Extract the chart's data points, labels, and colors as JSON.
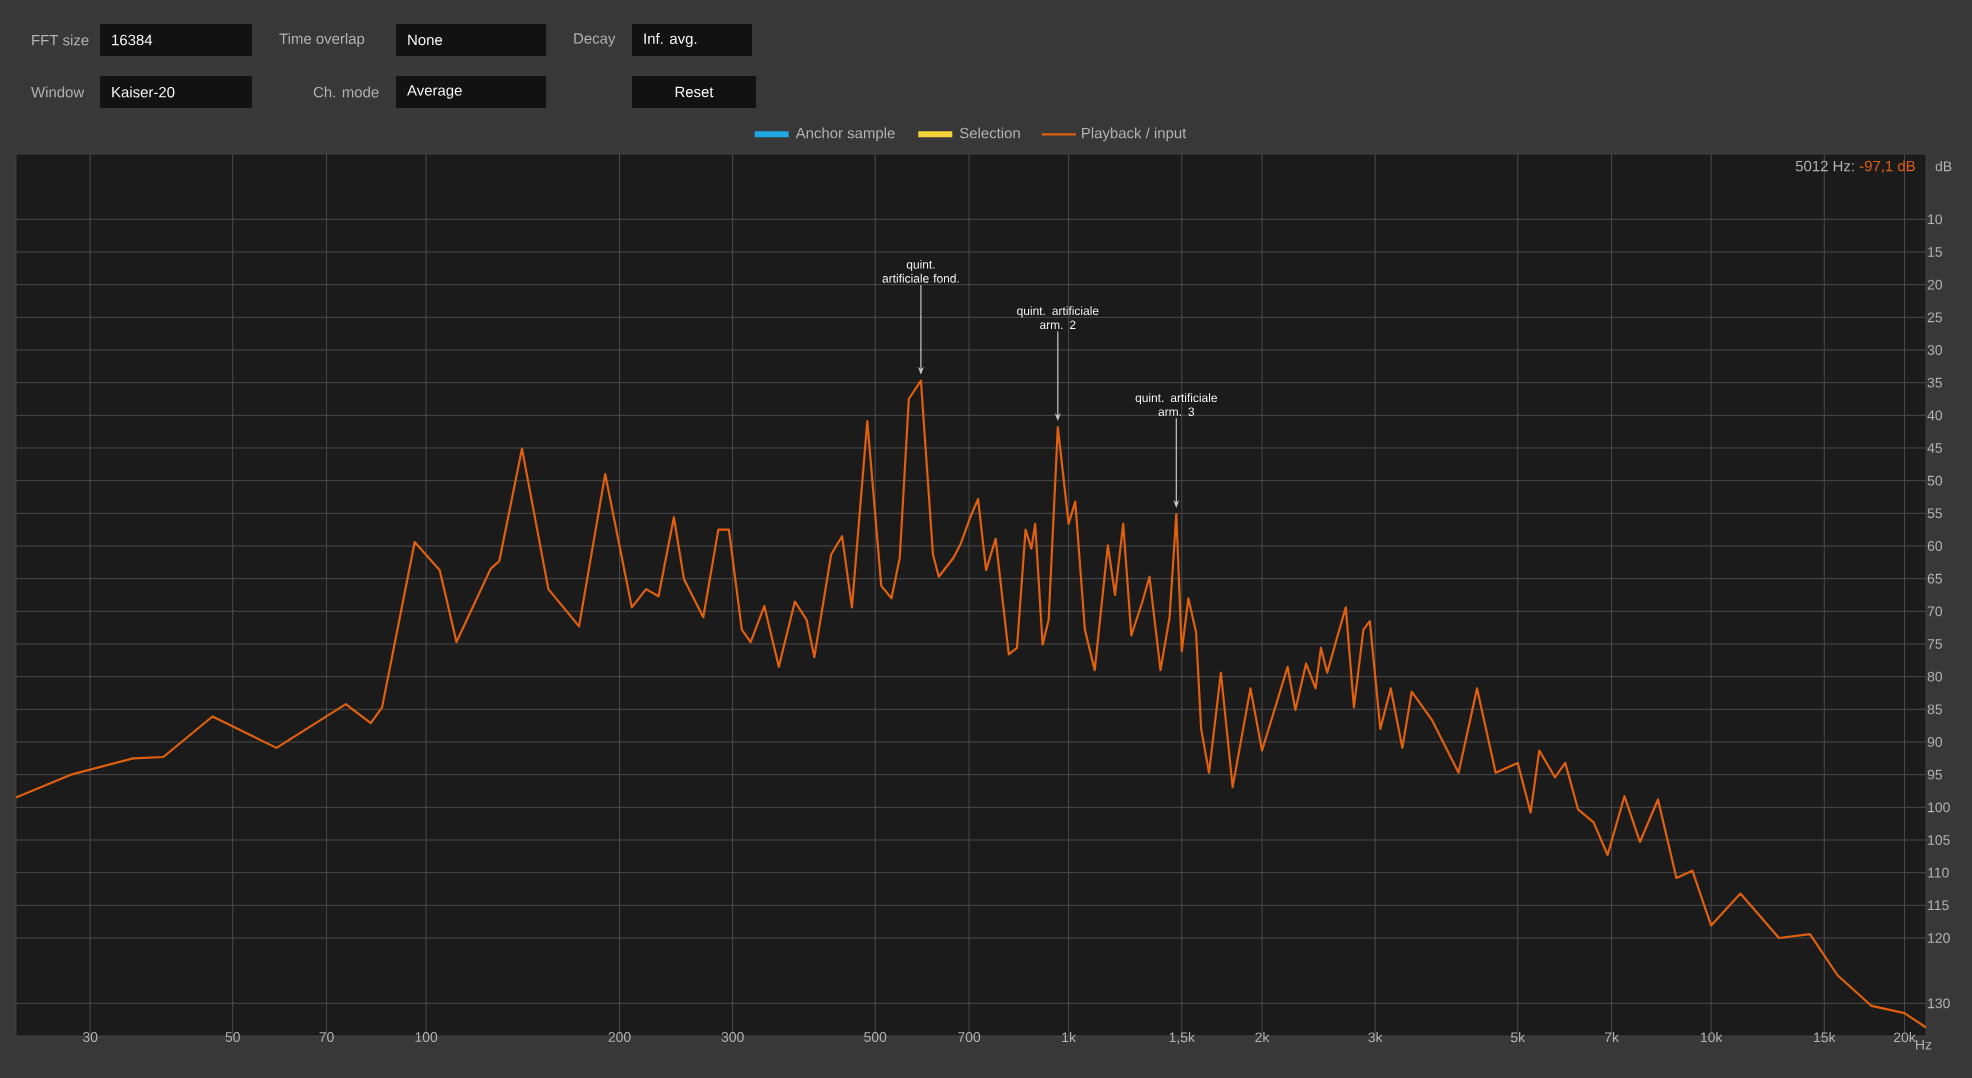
{
  "chart_data": {
    "type": "line",
    "ylabel": "dB",
    "log": "x",
    "grid": true,
    "legend": "top",
    "xlim": [
      23,
      21600
    ],
    "ylim": [
      -135,
      0
    ],
    "xticks": [
      30,
      50,
      70,
      100,
      200,
      300,
      500,
      700,
      {
        "value": 1000,
        "label": "1k"
      },
      {
        "value": 1500,
        "label": "1,5k"
      },
      {
        "value": 2000,
        "label": "2k"
      },
      {
        "value": 3000,
        "label": "3k"
      },
      {
        "value": 5000,
        "label": "5k"
      },
      {
        "value": 7000,
        "label": "7k"
      },
      {
        "value": 10000,
        "label": "10k"
      },
      {
        "value": 15000,
        "label": "15k"
      },
      {
        "value": 20000,
        "label": "20k"
      }
    ],
    "xlabel": "Hz",
    "yticks": [
      {
        "value": -10,
        "label": "10"
      },
      {
        "value": -15,
        "label": "15"
      },
      {
        "value": -20,
        "label": "20"
      },
      {
        "value": -25,
        "label": "25"
      },
      {
        "value": -30,
        "label": "30"
      },
      {
        "value": -35,
        "label": "35"
      },
      {
        "value": -40,
        "label": "40"
      },
      {
        "value": -45,
        "label": "45"
      },
      {
        "value": -50,
        "label": "50"
      },
      {
        "value": -55,
        "label": "55"
      },
      {
        "value": -60,
        "label": "60"
      },
      {
        "value": -65,
        "label": "65"
      },
      {
        "value": -70,
        "label": "70"
      },
      {
        "value": -75,
        "label": "75"
      },
      {
        "value": -80,
        "label": "80"
      },
      {
        "value": -85,
        "label": "85"
      },
      {
        "value": -90,
        "label": "90"
      },
      {
        "value": -95,
        "label": "95"
      },
      {
        "value": -100,
        "label": "100"
      },
      {
        "value": -105,
        "label": "105"
      },
      {
        "value": -110,
        "label": "110"
      },
      {
        "value": -115,
        "label": "115"
      },
      {
        "value": -120,
        "label": "120"
      },
      {
        "value": -130,
        "label": "130"
      }
    ],
    "series": [
      {
        "name": "Anchor sample",
        "color": "#1ea7e1"
      },
      {
        "name": "Selection",
        "color": "#f3d23a"
      },
      {
        "name": "Playback / input",
        "color": "#e0600f",
        "x": [
          23,
          28,
          35,
          39,
          46.5,
          58.5,
          75,
          82,
          85.4,
          96,
          105,
          111.5,
          126,
          130,
          141,
          155,
          173,
          190,
          209,
          220,
          230,
          243,
          252,
          270,
          285,
          296,
          310,
          320,
          336,
          354,
          375,
          391,
          402,
          427,
          444,
          460,
          486,
          511,
          530,
          546,
          564,
          589,
          615,
          628,
          662,
          679,
          703,
          723,
          744,
          770,
          807,
          831,
          857,
          875,
          887,
          911,
          931,
          962,
          1000,
          1024,
          1060,
          1098,
          1151,
          1181,
          1216,
          1252,
          1303,
          1336,
          1390,
          1436,
          1471,
          1500,
          1536,
          1579,
          1608,
          1654,
          1726,
          1800,
          1919,
          2000,
          2192,
          2254,
          2342,
          2423,
          2470,
          2526,
          2614,
          2700,
          2780,
          2876,
          2943,
          3056,
          3172,
          3307,
          3420,
          3676,
          4045,
          4322,
          4620,
          5000,
          5236,
          5401,
          5714,
          5928,
          6207,
          6562,
          6900,
          7330,
          7750,
          8265,
          8830,
          9350,
          10000,
          11106,
          12752,
          14250,
          15730,
          17770,
          20000,
          21600
        ],
        "values": [
          -98.5,
          -95,
          -92.5,
          -92.3,
          -86.1,
          -90.9,
          -84.2,
          -87.1,
          -84.7,
          -59.4,
          -63.7,
          -74.7,
          -63.5,
          -62.3,
          -45.1,
          -66.6,
          -72.3,
          -49,
          -69.4,
          -66.6,
          -67.7,
          -55.6,
          -65.1,
          -70.9,
          -57.5,
          -57.5,
          -72.8,
          -74.7,
          -69.2,
          -78.5,
          -68.5,
          -71.3,
          -77,
          -61.3,
          -58.5,
          -69.4,
          -40.9,
          -66.1,
          -68,
          -61.8,
          -37.5,
          -34.7,
          -61.3,
          -64.7,
          -61.8,
          -59.7,
          -55.6,
          -52.8,
          -63.7,
          -58.9,
          -76.6,
          -75.6,
          -57.5,
          -60.4,
          -56.6,
          -75.1,
          -71.3,
          -41.8,
          -56.6,
          -53.2,
          -72.8,
          -79,
          -59.9,
          -67.5,
          -56.6,
          -73.7,
          -68.5,
          -64.7,
          -79,
          -70.9,
          -55.1,
          -76.1,
          -68,
          -73.2,
          -88,
          -94.7,
          -79.4,
          -96.9,
          -81.8,
          -91.3,
          -78.5,
          -85.1,
          -78,
          -81.8,
          -75.6,
          -79.4,
          -74.2,
          -69.4,
          -84.7,
          -72.8,
          -71.5,
          -88,
          -81.8,
          -90.9,
          -82.3,
          -86.6,
          -94.7,
          -81.8,
          -94.7,
          -93.2,
          -100.8,
          -91.3,
          -95.4,
          -93.2,
          -100.3,
          -102.3,
          -107.3,
          -98.3,
          -105.3,
          -98.8,
          -110.8,
          -109.7,
          -118.1,
          -113.2,
          -120,
          -119.4,
          -125.7,
          -130.4,
          -131.5,
          -133.7
        ]
      }
    ],
    "annotations": [
      "FFT size",
      "16384",
      "Time overlap",
      "None",
      "Decay",
      "Inf. avg.",
      "Window",
      "Kaiser-20",
      "Ch. mode",
      "Average",
      "Reset",
      "5012 Hz:",
      "-97,1 dB",
      {
        "text": "quint. artificiale fond.",
        "x": 589,
        "y": -34.7
      },
      {
        "text": "quint. artificiale arm. 2",
        "x": 962,
        "y": -41.8
      },
      {
        "text": "quint. artificiale arm. 3",
        "x": 1471,
        "y": -55.1
      }
    ]
  }
}
